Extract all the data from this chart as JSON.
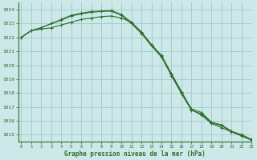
{
  "title": "Graphe pression niveau de la mer (hPa)",
  "background_color": "#cce8e8",
  "grid_color": "#a8cccc",
  "line_color": "#2d6e2d",
  "xlim": [
    -0.3,
    23
  ],
  "ylim": [
    1014.5,
    1024.5
  ],
  "yticks": [
    1015,
    1016,
    1017,
    1018,
    1019,
    1020,
    1021,
    1022,
    1023,
    1024
  ],
  "xticks": [
    0,
    1,
    2,
    3,
    4,
    5,
    6,
    7,
    8,
    9,
    10,
    11,
    12,
    13,
    14,
    15,
    16,
    17,
    18,
    19,
    20,
    21,
    22,
    23
  ],
  "series": [
    [
      1022.0,
      1022.5,
      1022.6,
      1022.7,
      1022.9,
      1023.1,
      1023.3,
      1023.4,
      1023.5,
      1023.55,
      1023.4,
      1023.1,
      1022.4,
      1021.5,
      1020.7,
      1019.4,
      1018.1,
      1016.8,
      1016.4,
      1015.8,
      1015.5,
      1015.2,
      1014.9,
      1014.6
    ],
    [
      1022.0,
      1022.5,
      1022.7,
      1023.0,
      1023.25,
      1023.55,
      1023.7,
      1023.82,
      1023.87,
      1023.9,
      1023.6,
      1023.0,
      1022.3,
      1021.4,
      1020.6,
      1019.25,
      1017.95,
      1016.75,
      1016.5,
      1015.85,
      1015.65,
      1015.2,
      1014.95,
      1014.62
    ],
    [
      1022.0,
      1022.5,
      1022.7,
      1023.0,
      1023.3,
      1023.6,
      1023.75,
      1023.87,
      1023.9,
      1023.95,
      1023.65,
      1023.1,
      1022.35,
      1021.45,
      1020.65,
      1019.35,
      1018.05,
      1016.85,
      1016.6,
      1015.9,
      1015.7,
      1015.25,
      1015.0,
      1014.65
    ]
  ]
}
